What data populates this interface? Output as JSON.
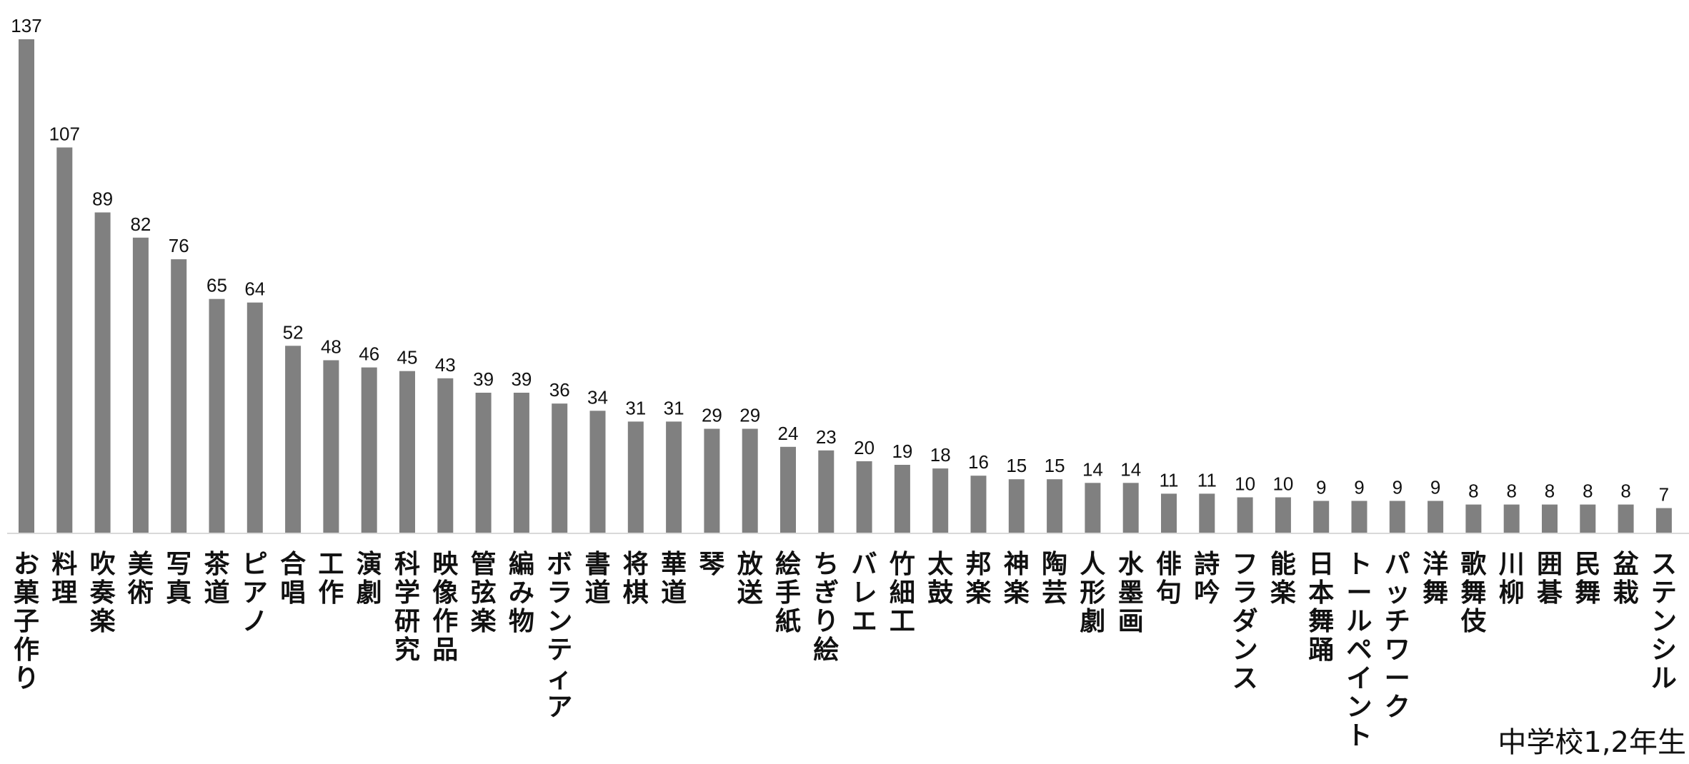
{
  "chart_data": {
    "type": "bar",
    "title": "",
    "caption": "中学校1,2年生",
    "xlabel": "",
    "ylabel": "",
    "ylim": [
      0,
      137
    ],
    "grid": false,
    "legend": "none",
    "colors": {
      "bar": "#808080",
      "axis": "#d9d9d9",
      "text": "#111111"
    },
    "categories": [
      "お菓子作り",
      "料理",
      "吹奏楽",
      "美術",
      "写真",
      "茶道",
      "ピアノ",
      "合唱",
      "工作",
      "演劇",
      "科学研究",
      "映像作品",
      "管弦楽",
      "編み物",
      "ボランティア",
      "書道",
      "将棋",
      "華道",
      "琴",
      "放送",
      "絵手紙",
      "ちぎり絵",
      "バレエ",
      "竹細工",
      "太鼓",
      "邦楽",
      "神楽",
      "陶芸",
      "人形劇",
      "水墨画",
      "俳句",
      "詩吟",
      "フラダンス",
      "能楽",
      "日本舞踊",
      "トールペイント",
      "パッチワーク",
      "洋舞",
      "歌舞伎",
      "川柳",
      "囲碁",
      "民舞",
      "盆栽",
      "ステンシル"
    ],
    "values": [
      137,
      107,
      89,
      82,
      76,
      65,
      64,
      52,
      48,
      46,
      45,
      43,
      39,
      39,
      36,
      34,
      31,
      31,
      29,
      29,
      24,
      23,
      20,
      19,
      18,
      16,
      15,
      15,
      14,
      14,
      11,
      11,
      10,
      10,
      9,
      9,
      9,
      9,
      8,
      8,
      8,
      8,
      8,
      7
    ]
  }
}
